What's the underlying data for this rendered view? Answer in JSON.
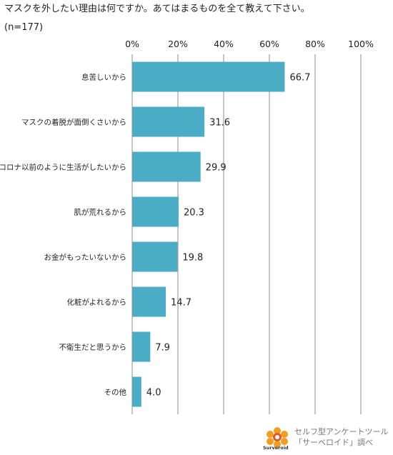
{
  "title": "マスクを外したい理由は何ですか。あてはまるものを全て教えて下さい。",
  "sample": "(n=177)",
  "chart_data": {
    "type": "bar",
    "orientation": "horizontal",
    "categories": [
      "息苦しいから",
      "マスクの着脱が面倒くさいから",
      "コロナ以前のように生活がしたいから",
      "肌が荒れるから",
      "お金がもったいないから",
      "化粧がよれるから",
      "不衛生だと思うから",
      "その他"
    ],
    "values": [
      66.7,
      31.6,
      29.9,
      20.3,
      19.8,
      14.7,
      7.9,
      4.0
    ],
    "value_labels": [
      "66.7",
      "31.6",
      "29.9",
      "20.3",
      "19.8",
      "14.7",
      "7.9",
      "4.0"
    ],
    "x_ticks": [
      "0%",
      "20%",
      "40%",
      "60%",
      "80%",
      "100%"
    ],
    "xlim": [
      0,
      100
    ],
    "grid": true,
    "bar_color": "#4bacc6"
  },
  "footer": {
    "logo_name": "Surveroid",
    "line1": "セルフ型アンケートツール",
    "line2": "「サーベロイド」調べ"
  }
}
